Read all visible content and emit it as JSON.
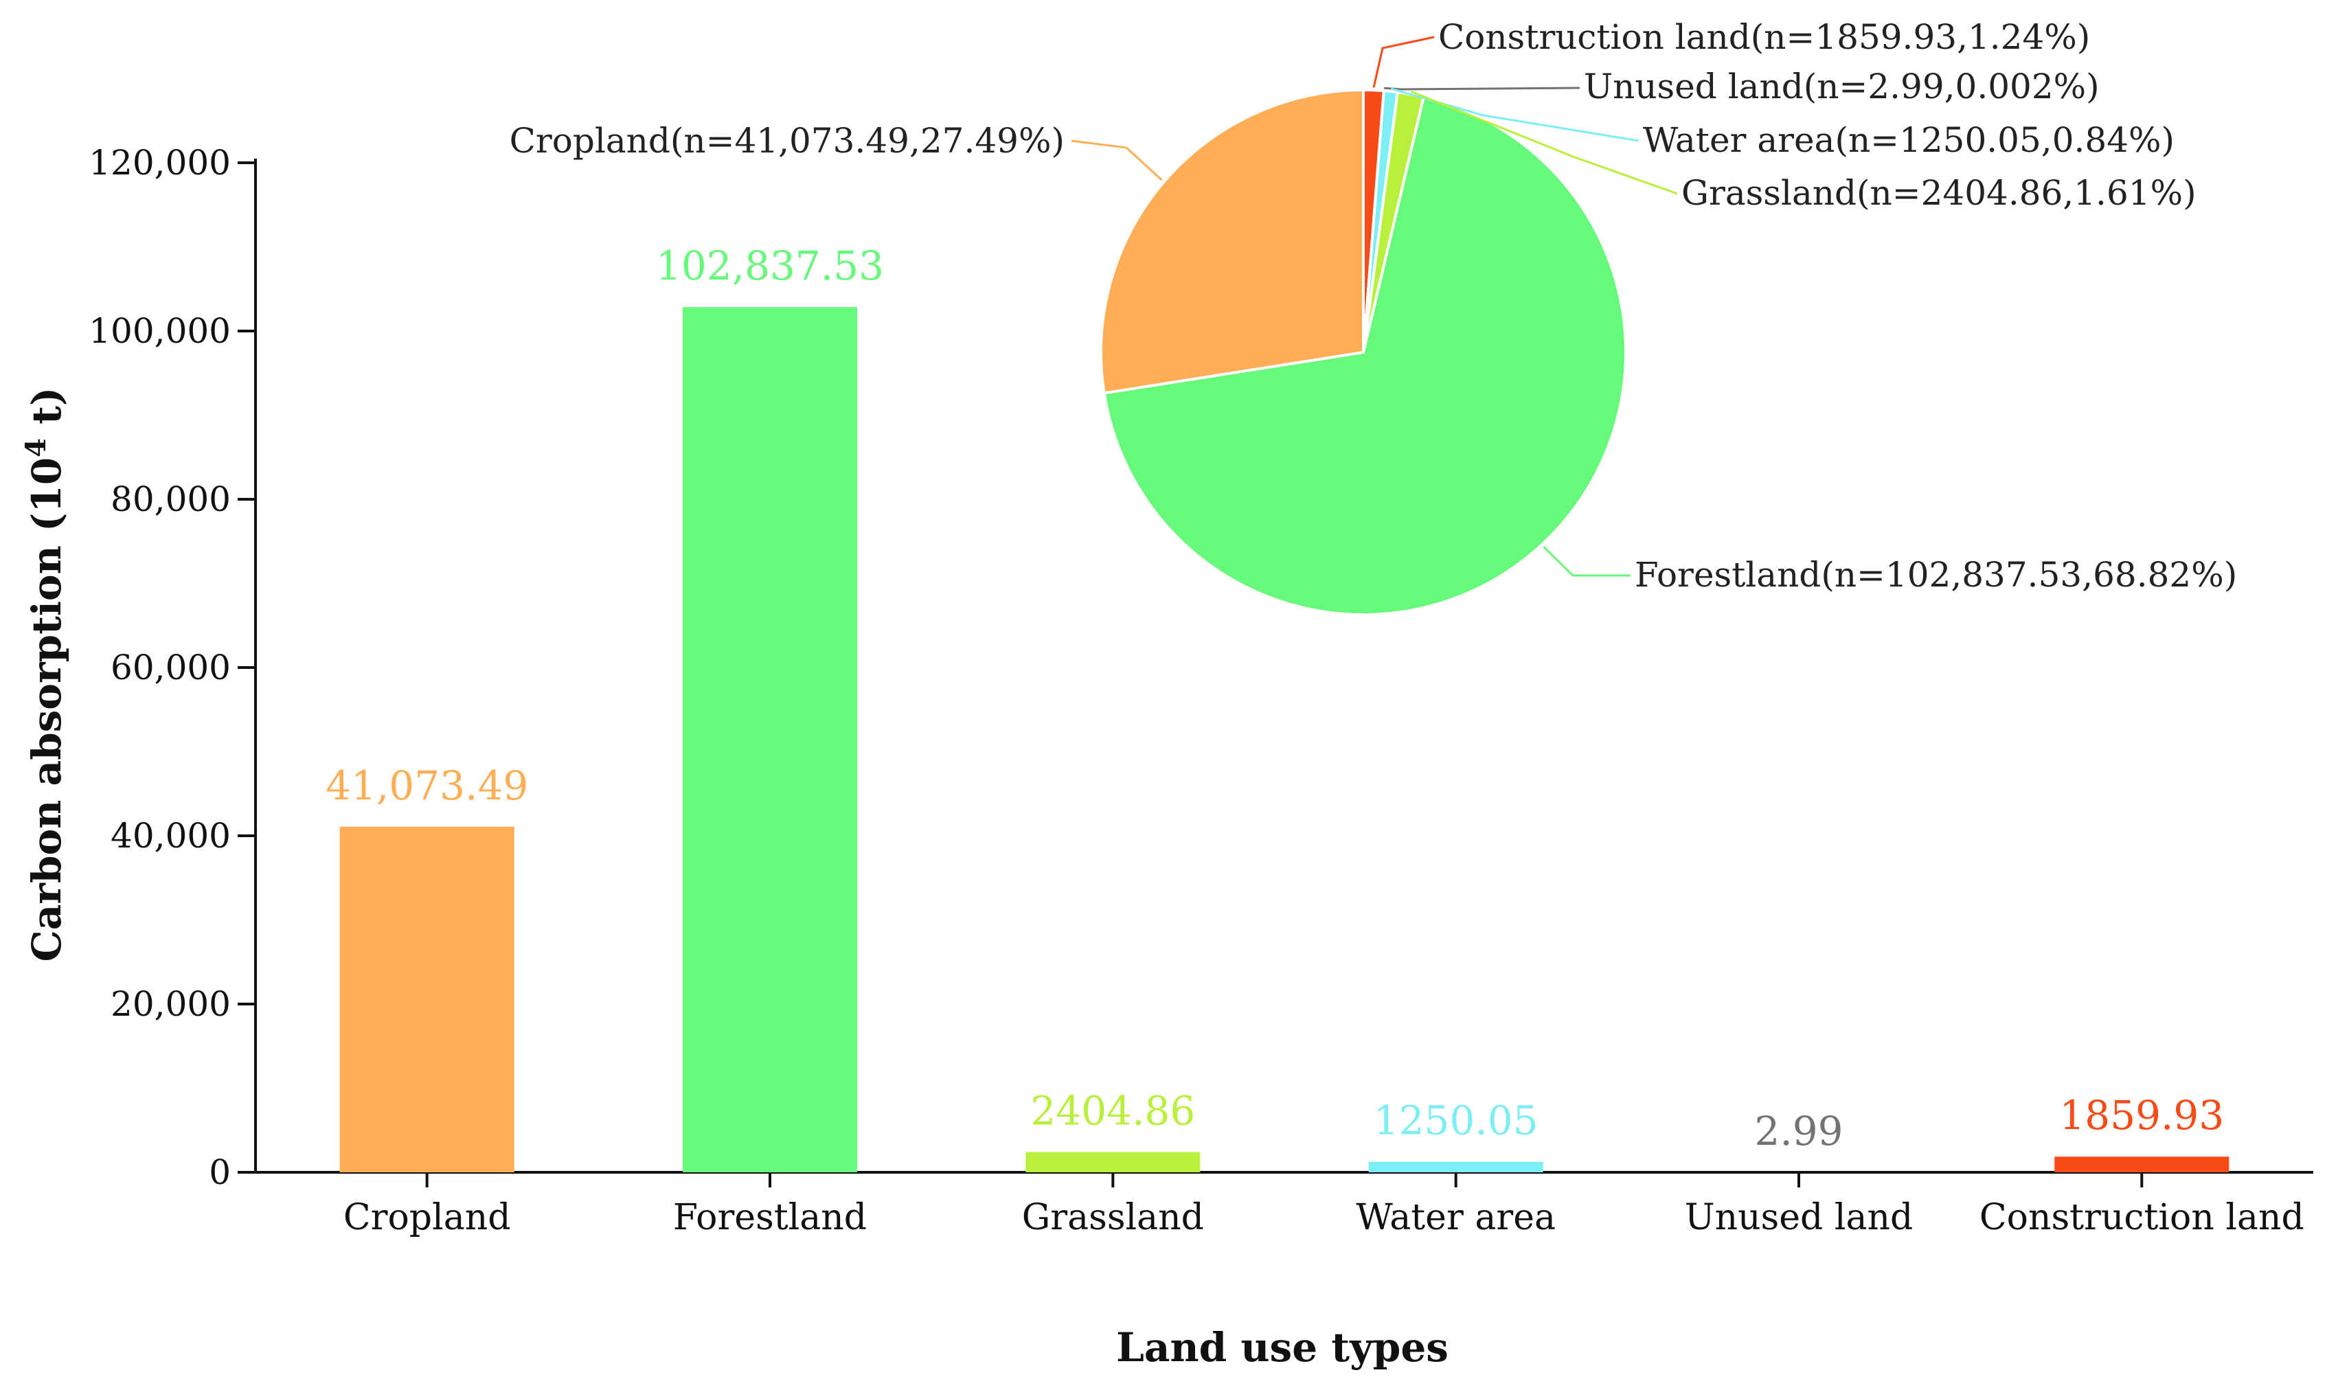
{
  "chart_data": {
    "type": "bar",
    "xlabel": "Land use types",
    "ylabel": "Carbon absorption (10",
    "ylabel_superscript": "4",
    "ylabel_suffix": " t)",
    "ylim": [
      0,
      120000
    ],
    "yticks": [
      0,
      20000,
      40000,
      60000,
      80000,
      100000,
      120000
    ],
    "ytick_labels": [
      "0",
      "20,000",
      "40,000",
      "60,000",
      "80,000",
      "100,000",
      "120,000"
    ],
    "grid": false,
    "categories": [
      "Cropland",
      "Forestland",
      "Grassland",
      "Water area",
      "Unused land",
      "Construction land"
    ],
    "values": [
      41073.49,
      102837.53,
      2404.86,
      1250.05,
      2.99,
      1859.93
    ],
    "value_labels": [
      "41,073.49",
      "102,837.53",
      "2404.86",
      "1250.05",
      "2.99",
      "1859.93"
    ],
    "colors": [
      "#FFAE55",
      "#66F97A",
      "#B9F03C",
      "#7CEEF5",
      "#737373",
      "#FA4A16"
    ],
    "inset_pie": {
      "type": "pie",
      "start": "12 o'clock, clockwise",
      "order": [
        "Construction land",
        "Unused land",
        "Water area",
        "Grassland",
        "Forestland",
        "Cropland"
      ],
      "values": [
        1859.93,
        2.99,
        1250.05,
        2404.86,
        102837.53,
        41073.49
      ],
      "percents": [
        1.24,
        0.002,
        0.84,
        1.61,
        68.82,
        27.49
      ],
      "labels": [
        "Construction land(n=1859.93,1.24%)",
        "Unused land(n=2.99,0.002%)",
        "Water area(n=1250.05,0.84%)",
        "Grassland(n=2404.86,1.61%)",
        "Forestland(n=102,837.53,68.82%)",
        "Cropland(n=41,073.49,27.49%)"
      ],
      "colors": [
        "#FA4A16",
        "#737373",
        "#7CEEF5",
        "#B9F03C",
        "#66F97A",
        "#FFAE55"
      ]
    }
  }
}
